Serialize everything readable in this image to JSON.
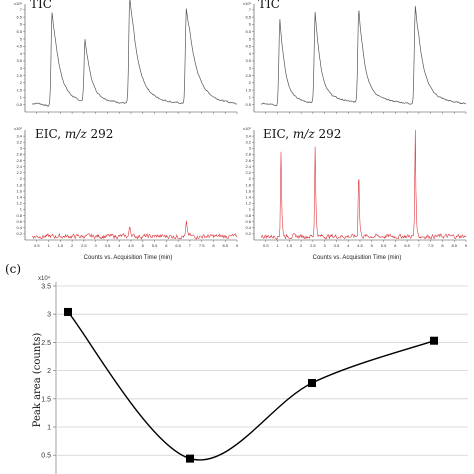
{
  "chart_data": [
    {
      "type": "line",
      "panel": "top-left-tic",
      "title": "TIC",
      "exponent": "x10⁵",
      "yticks": [
        "0.5",
        "1",
        "1.5",
        "2",
        "2.5",
        "3",
        "3.5",
        "4",
        "4.5",
        "5",
        "5.5",
        "6",
        "6.5",
        "7"
      ],
      "ylim": [
        0,
        7.4
      ],
      "xlim": [
        0,
        9
      ],
      "peaks": [
        {
          "t": 1.15,
          "h": 6.5,
          "decay": 0.28
        },
        {
          "t": 2.55,
          "h": 4.3,
          "decay": 0.22
        },
        {
          "t": 4.45,
          "h": 7.3,
          "decay": 0.3
        },
        {
          "t": 6.85,
          "h": 6.5,
          "decay": 0.35
        }
      ],
      "baseline": 0.35,
      "color": "#555555"
    },
    {
      "type": "line",
      "panel": "top-right-tic",
      "title": "TIC",
      "exponent": "x10⁵",
      "yticks": [
        "0.5",
        "1",
        "1.5",
        "2",
        "2.5",
        "3",
        "3.5",
        "4",
        "4.5",
        "5",
        "5.5",
        "6",
        "6.5",
        "7"
      ],
      "ylim": [
        0,
        7.4
      ],
      "xlim": [
        0,
        9
      ],
      "peaks": [
        {
          "t": 1.1,
          "h": 6.0,
          "decay": 0.2
        },
        {
          "t": 2.6,
          "h": 6.3,
          "decay": 0.2
        },
        {
          "t": 4.45,
          "h": 6.5,
          "decay": 0.22
        },
        {
          "t": 6.85,
          "h": 6.7,
          "decay": 0.28
        }
      ],
      "baseline": 0.35,
      "color": "#555555"
    },
    {
      "type": "line",
      "panel": "bottom-left-eic",
      "title": "EIC, m/z 292",
      "exponent": "x10²",
      "yticks": [
        "0.2",
        "0.4",
        "0.6",
        "0.8",
        "1",
        "1.2",
        "1.4",
        "1.6",
        "1.8",
        "2",
        "2.2",
        "2.4",
        "2.6",
        "2.8",
        "3",
        "3.2",
        "3.4"
      ],
      "ylim": [
        0,
        3.6
      ],
      "xlim": [
        0,
        9
      ],
      "xticks": [
        "0.5",
        "1",
        "1.5",
        "2",
        "2.5",
        "3",
        "3.5",
        "4",
        "4.5",
        "5",
        "5.5",
        "6",
        "6.5",
        "7",
        "7.5",
        "8",
        "8.5",
        "9"
      ],
      "xlabel": "Counts vs. Acquisition Time (min)",
      "peaks": [
        {
          "t": 4.45,
          "h": 0.35,
          "decay": 0.05
        },
        {
          "t": 6.85,
          "h": 0.45,
          "decay": 0.05
        }
      ],
      "baseline": 0.12,
      "color": "#d9262c"
    },
    {
      "type": "line",
      "panel": "bottom-right-eic",
      "title": "EIC, m/z 292",
      "exponent": "x10²",
      "yticks": [
        "0.2",
        "0.4",
        "0.6",
        "0.8",
        "1",
        "1.2",
        "1.4",
        "1.6",
        "1.8",
        "2",
        "2.2",
        "2.4",
        "2.6",
        "2.8",
        "3",
        "3.2",
        "3.4"
      ],
      "ylim": [
        0,
        3.6
      ],
      "xlim": [
        0,
        9
      ],
      "xticks": [
        "0.5",
        "1",
        "1.5",
        "2",
        "2.5",
        "3",
        "3.5",
        "4",
        "4.5",
        "5",
        "5.5",
        "6",
        "6.5",
        "7",
        "7.5",
        "8",
        "8.5",
        "9"
      ],
      "xlabel": "Counts vs. Acquisition Time (min)",
      "peaks": [
        {
          "t": 1.15,
          "h": 2.85,
          "decay": 0.03
        },
        {
          "t": 2.6,
          "h": 3.05,
          "decay": 0.03
        },
        {
          "t": 4.45,
          "h": 2.35,
          "decay": 0.03
        },
        {
          "t": 6.85,
          "h": 3.5,
          "decay": 0.03
        }
      ],
      "baseline": 0.12,
      "color": "#d9262c"
    },
    {
      "type": "line",
      "panel": "c",
      "panel_label": "(c)",
      "exponent": "x10⁴",
      "ylabel": "Peak area (counts)",
      "yticks": [
        "0.5",
        "1",
        "1.5",
        "2",
        "2.5",
        "3",
        "3.5"
      ],
      "ylim": [
        0.38,
        3.5
      ],
      "x": [
        1,
        2,
        3,
        4
      ],
      "values": [
        3.04,
        0.44,
        1.78,
        2.53
      ],
      "marker": "square",
      "color": "#000000"
    }
  ]
}
